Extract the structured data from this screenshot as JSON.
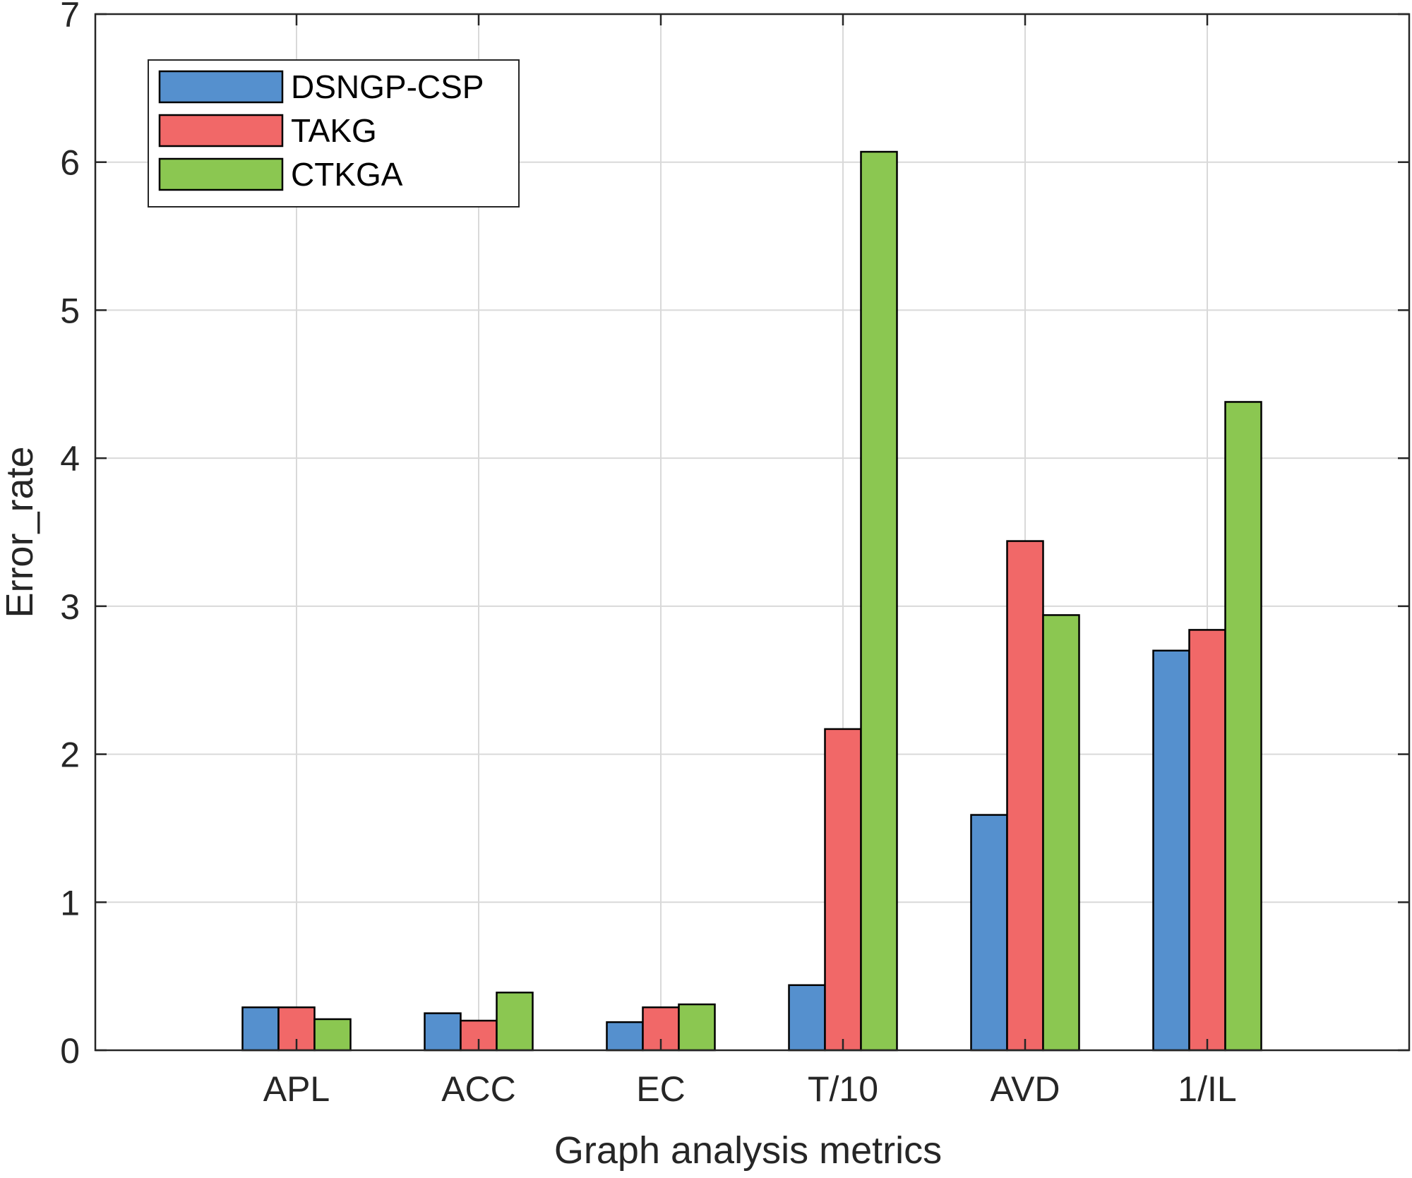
{
  "chart_data": {
    "type": "bar",
    "title": "",
    "xlabel": "Graph analysis metrics",
    "ylabel": "Error_rate",
    "ylim": [
      0,
      7
    ],
    "yticks": [
      "0",
      "1",
      "2",
      "3",
      "4",
      "5",
      "6",
      "7"
    ],
    "categories": [
      "APL",
      "ACC",
      "EC",
      "T/10",
      "AVD",
      "1/IL"
    ],
    "grid": true,
    "legend_position": "top-left",
    "series": [
      {
        "name": "DSNGP-CSP",
        "color": "#5590ce",
        "values": [
          0.29,
          0.25,
          0.19,
          0.44,
          1.59,
          2.7
        ]
      },
      {
        "name": "TAKG",
        "color": "#f16868",
        "values": [
          0.29,
          0.2,
          0.29,
          2.17,
          3.44,
          2.84
        ]
      },
      {
        "name": "CTKGA",
        "color": "#8bc751",
        "values": [
          0.21,
          0.39,
          0.31,
          6.07,
          2.94,
          4.38
        ]
      }
    ]
  }
}
